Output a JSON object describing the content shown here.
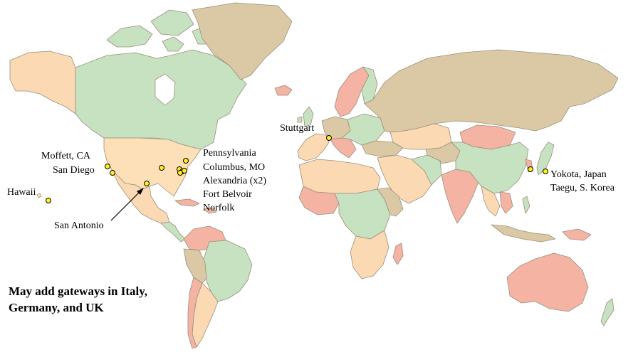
{
  "colors": {
    "ocean": "#ffffff",
    "usa": "#fde0b8",
    "canada": "#c9e5c3",
    "russia": "#ddcba7",
    "greenland": "#ddcba7",
    "green": "#c7e2c0",
    "pink": "#f4b3a3",
    "tan": "#dbc9a6",
    "peach": "#fbd9b3",
    "border": "#9b8f7c",
    "marker_fill": "#ffee22",
    "marker_stroke": "#000000"
  },
  "locations": [
    {
      "id": "hawaii",
      "label": "Hawaii"
    },
    {
      "id": "moffett",
      "label": "Moffett, CA"
    },
    {
      "id": "san-diego",
      "label": "San Diego"
    },
    {
      "id": "san-antonio",
      "label": "San Antonio"
    },
    {
      "id": "pennsylvania",
      "label": "Pennsylvania"
    },
    {
      "id": "columbus",
      "label": "Columbus, MO"
    },
    {
      "id": "alexandria",
      "label": "Alexandria (x2)"
    },
    {
      "id": "fort-belvoir",
      "label": "Fort Belvoir"
    },
    {
      "id": "norfolk",
      "label": "Norfolk"
    },
    {
      "id": "stuttgart",
      "label": "Stuttgart"
    },
    {
      "id": "yokota",
      "label": "Yokota, Japan"
    },
    {
      "id": "taegu",
      "label": "Taegu, S. Korea"
    }
  ],
  "note": {
    "line1": "May add gateways in Italy,",
    "line2": "Germany, and UK"
  }
}
